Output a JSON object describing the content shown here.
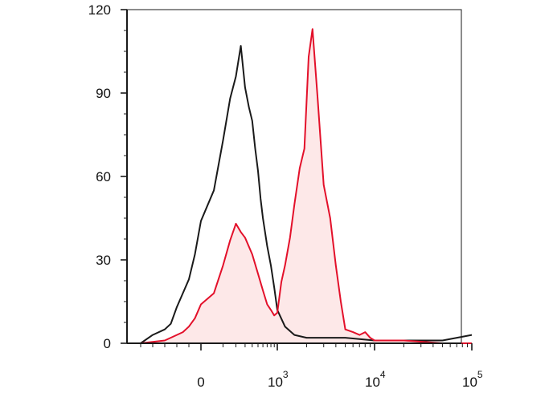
{
  "chart_data": {
    "type": "area",
    "x_scale": "biexponential",
    "x_tick_labels": [
      {
        "base": "0",
        "exp": "",
        "value": 0
      },
      {
        "base": "10",
        "exp": "3",
        "value": 1000
      },
      {
        "base": "10",
        "exp": "4",
        "value": 10000
      },
      {
        "base": "10",
        "exp": "5",
        "value": 100000
      }
    ],
    "y_tick_labels": [
      "0",
      "30",
      "60",
      "90",
      "120"
    ],
    "ylim": [
      0,
      120
    ],
    "grid": false,
    "legend": "none",
    "series": [
      {
        "color": "#1a1a1a",
        "fill": "none",
        "x": [
          -500,
          -400,
          -300,
          -250,
          -200,
          -150,
          -100,
          -50,
          0,
          50,
          100,
          150,
          200,
          250,
          300,
          350,
          400,
          450,
          500,
          550,
          600,
          700,
          800,
          900,
          1000,
          1200,
          1500,
          2000,
          3000,
          5000,
          10000,
          20000,
          50000,
          100000
        ],
        "values": [
          0,
          3,
          5,
          7,
          13,
          18,
          23,
          32,
          44,
          55,
          73,
          88,
          96,
          107,
          92,
          85,
          80,
          70,
          62,
          52,
          45,
          35,
          28,
          20,
          12,
          6,
          3,
          2,
          2,
          2,
          1,
          1,
          1,
          3
        ]
      },
      {
        "color": "#e3102a",
        "fill": "#fde8e8",
        "x": [
          -500,
          -300,
          -200,
          -150,
          -100,
          -50,
          0,
          50,
          100,
          150,
          200,
          250,
          300,
          400,
          500,
          600,
          700,
          800,
          900,
          1000,
          1100,
          1200,
          1350,
          1500,
          1700,
          1900,
          2100,
          2300,
          2600,
          3000,
          3500,
          4000,
          4500,
          5000,
          6000,
          7000,
          8000,
          9000,
          10000,
          12000,
          20000,
          50000,
          100000
        ],
        "values": [
          0,
          1,
          3,
          4,
          6,
          9,
          14,
          18,
          28,
          37,
          43,
          40,
          38,
          32,
          25,
          19,
          14,
          12,
          10,
          11,
          22,
          28,
          38,
          50,
          63,
          70,
          103,
          113,
          88,
          57,
          45,
          28,
          15,
          5,
          4,
          3,
          4,
          2,
          1,
          1,
          1,
          0,
          0
        ]
      }
    ]
  }
}
